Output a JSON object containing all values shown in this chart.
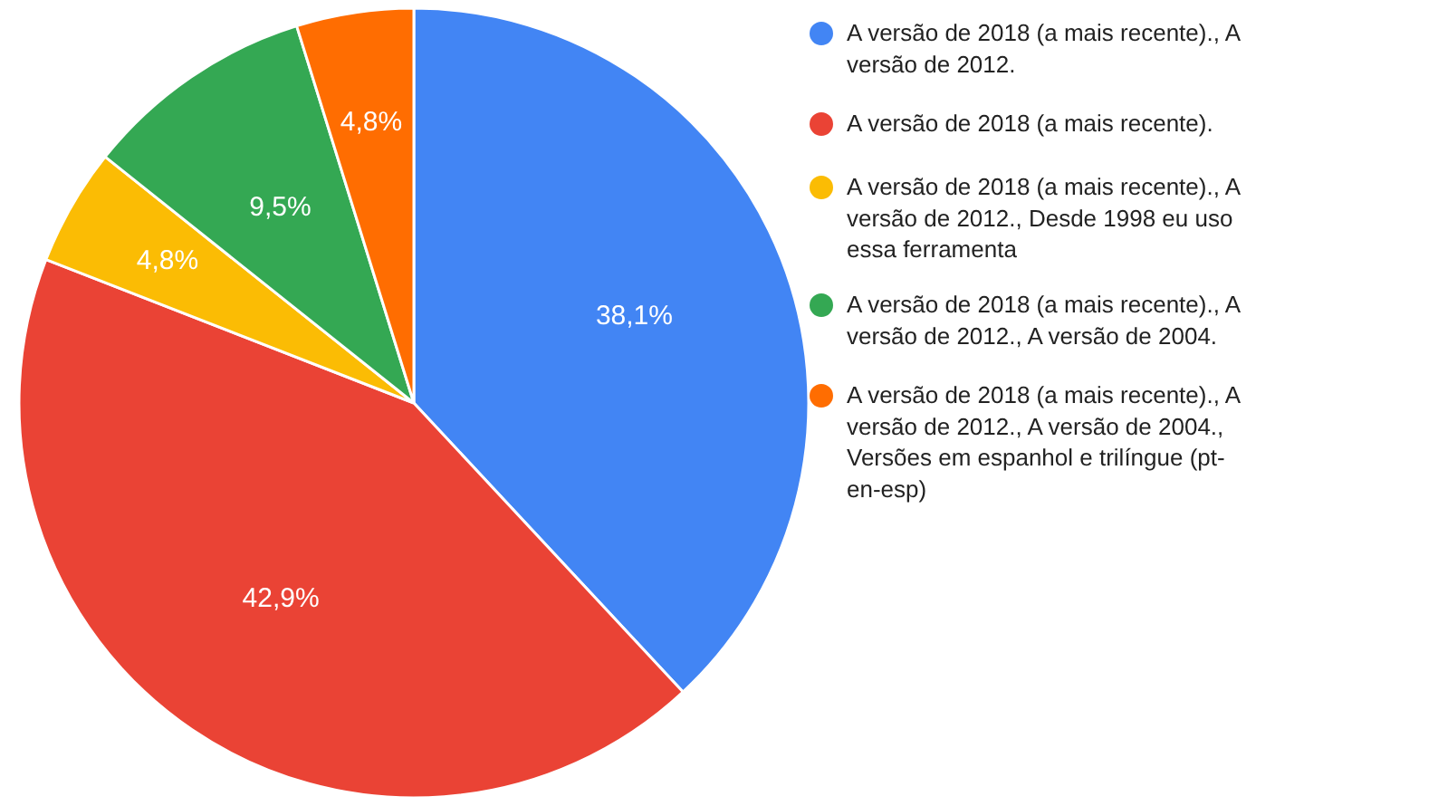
{
  "chart_data": {
    "type": "pie",
    "categories": [
      "A versão de 2018 (a mais recente)., A versão de 2012.",
      "A versão de 2018 (a mais recente).",
      "A versão de 2018 (a mais recente)., A versão de 2012., Desde 1998 eu uso essa ferramenta",
      "A versão de 2018 (a mais recente)., A versão de 2012., A versão de 2004.",
      "A versão de 2018 (a mais recente)., A versão de 2012., A versão de 2004., Versões em espanhol e trilíngue (pt-en-esp)"
    ],
    "values": [
      38.1,
      42.9,
      4.8,
      9.5,
      4.8
    ],
    "value_labels": [
      "38,1%",
      "42,9%",
      "4,8%",
      "9,5%",
      "4,8%"
    ],
    "colors": [
      "#4285f4",
      "#ea4335",
      "#fbbc04",
      "#34a853",
      "#ff6d01"
    ],
    "legend": "right"
  }
}
